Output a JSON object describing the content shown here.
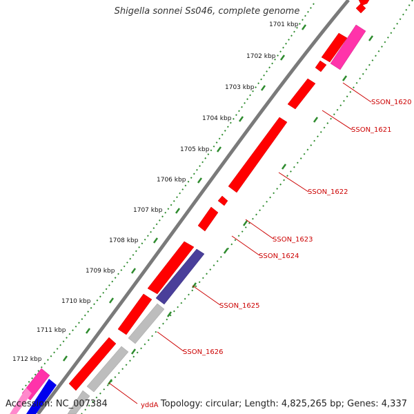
{
  "title": "Shigella sonnei Ss046, complete genome",
  "footer": {
    "accession": "Accession: NC_007384",
    "stats": "Topology: circular; Length: 4,825,265 bp; Genes: 4,337"
  },
  "ticks": [
    "1701 kbp",
    "1702 kbp",
    "1703 kbp",
    "1704 kbp",
    "1705 kbp",
    "1706 kbp",
    "1707 kbp",
    "1708 kbp",
    "1709 kbp",
    "1710 kbp",
    "1711 kbp",
    "1712 kbp"
  ],
  "gene_labels": [
    "SSON_1620",
    "SSON_1621",
    "SSON_1622",
    "SSON_1623",
    "SSON_1624",
    "SSON_1625",
    "SSON_1626",
    "yddA"
  ],
  "colors": {
    "cds_red": "#ff0000",
    "cds_magenta": "#ff33aa",
    "cds_blue": "#0000ee",
    "cds_navy": "#4a3f9a",
    "cds_grey": "#bdbdbd",
    "backbone": "#7a7a7a",
    "tick_green": "#2e8b2e",
    "label_red": "#cc0000"
  }
}
